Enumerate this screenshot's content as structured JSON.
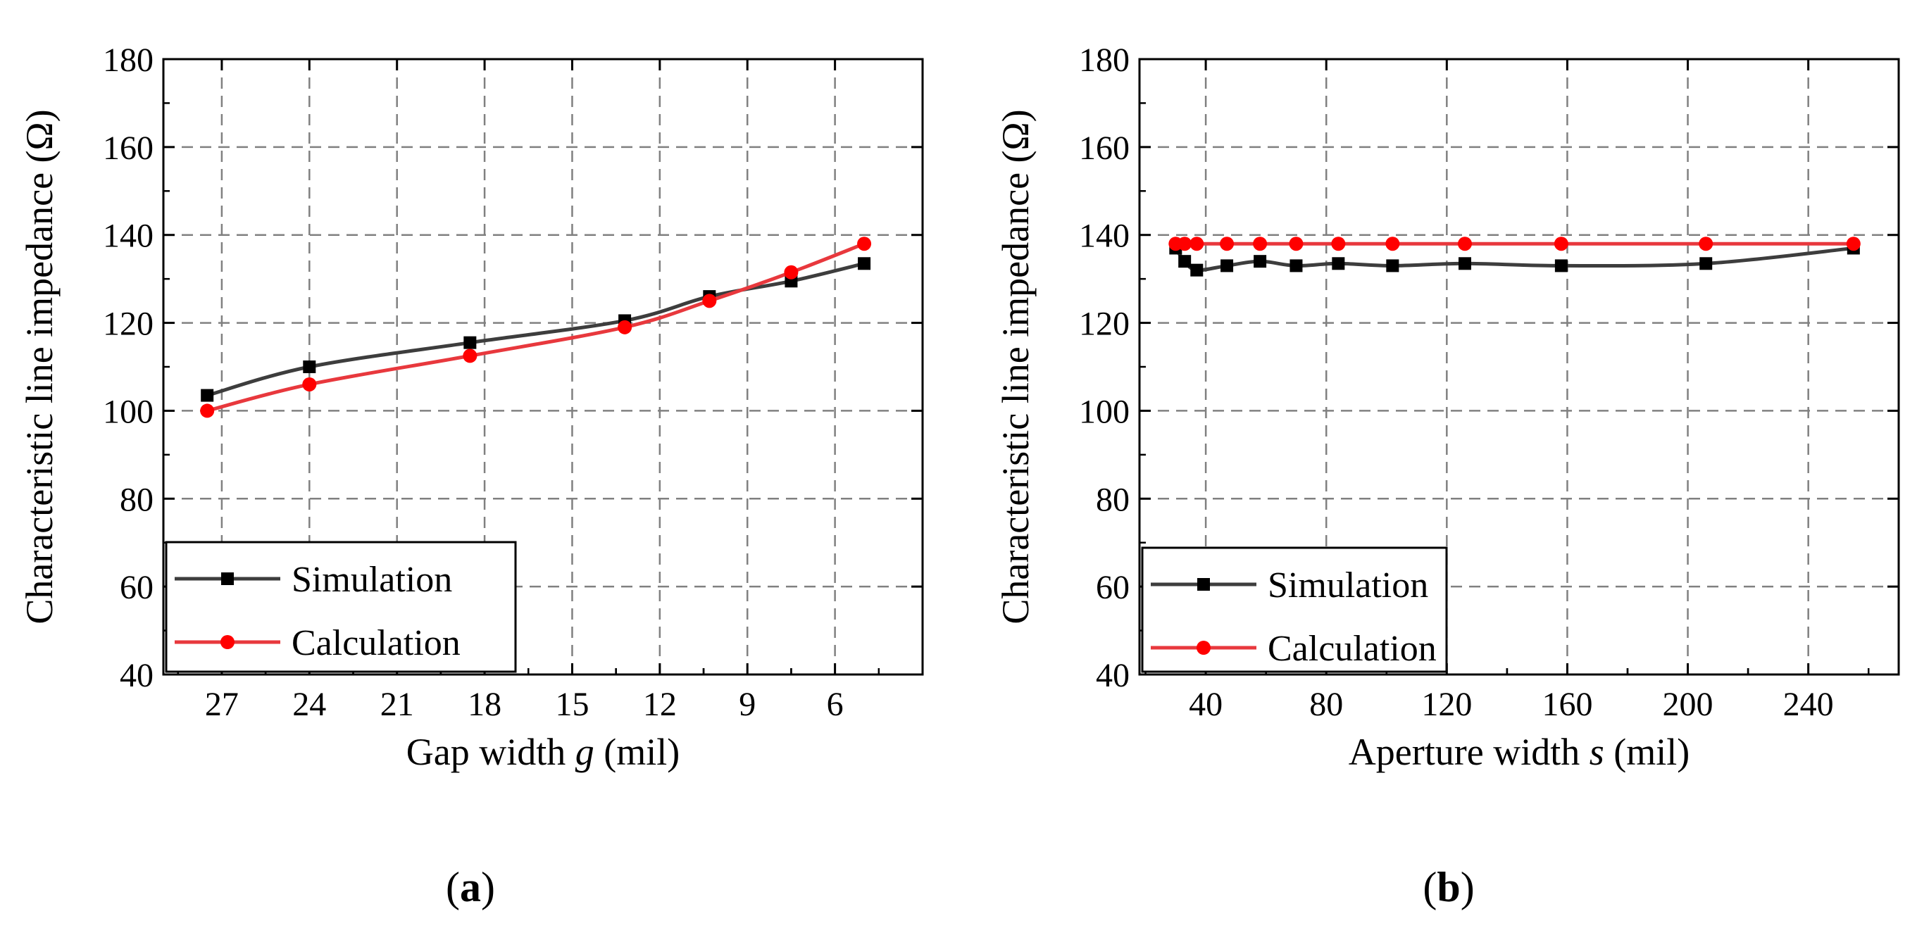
{
  "colors": {
    "simulation": "#3d3d3d",
    "simulation_marker": "#000000",
    "calculation": "#e8383d",
    "calculation_marker": "#ff0000",
    "grid": "#808080"
  },
  "chart_data": [
    {
      "type": "line",
      "panel_label": "a",
      "xlabel_prefix": "Gap width ",
      "xlabel_var": "g",
      "xlabel_suffix": " (mil)",
      "ylabel": "Characteristic line impedance (Ω)",
      "xlim": [
        29,
        3
      ],
      "ylim": [
        40,
        180
      ],
      "x_reversed": true,
      "xticks": [
        27,
        24,
        21,
        18,
        15,
        12,
        9,
        6
      ],
      "yticks": [
        40,
        60,
        80,
        100,
        120,
        140,
        160,
        180
      ],
      "grid": true,
      "legend_position": "bottom-left",
      "series": [
        {
          "name": "Simulation",
          "marker": "square",
          "x": [
            27.5,
            24,
            18.5,
            13.2,
            10.3,
            7.5,
            5
          ],
          "y": [
            103.5,
            110,
            115.5,
            120.5,
            126,
            129.5,
            133.5
          ]
        },
        {
          "name": "Calculation",
          "marker": "circle",
          "x": [
            27.5,
            24,
            18.5,
            13.2,
            10.3,
            7.5,
            5
          ],
          "y": [
            100,
            106,
            112.5,
            119,
            125,
            131.5,
            138
          ]
        }
      ]
    },
    {
      "type": "line",
      "panel_label": "b",
      "xlabel_prefix": "Aperture width ",
      "xlabel_var": "s",
      "xlabel_suffix": " (mil)",
      "ylabel": "Characteristic line impedance (Ω)",
      "xlim": [
        18,
        270
      ],
      "ylim": [
        40,
        180
      ],
      "x_reversed": false,
      "xticks": [
        40,
        80,
        120,
        160,
        200,
        240
      ],
      "yticks": [
        40,
        60,
        80,
        100,
        120,
        140,
        160,
        180
      ],
      "grid": true,
      "legend_position": "bottom-left",
      "series": [
        {
          "name": "Simulation",
          "marker": "square",
          "x": [
            30,
            33,
            37,
            47,
            58,
            70,
            84,
            102,
            126,
            158,
            206,
            255
          ],
          "y": [
            137,
            134,
            132,
            133,
            134,
            133,
            133.5,
            133,
            133.5,
            133,
            133.5,
            137
          ]
        },
        {
          "name": "Calculation",
          "marker": "circle",
          "x": [
            30,
            33,
            37,
            47,
            58,
            70,
            84,
            102,
            126,
            158,
            206,
            255
          ],
          "y": [
            138,
            138,
            138,
            138,
            138,
            138,
            138,
            138,
            138,
            138,
            138,
            138
          ]
        }
      ]
    }
  ]
}
